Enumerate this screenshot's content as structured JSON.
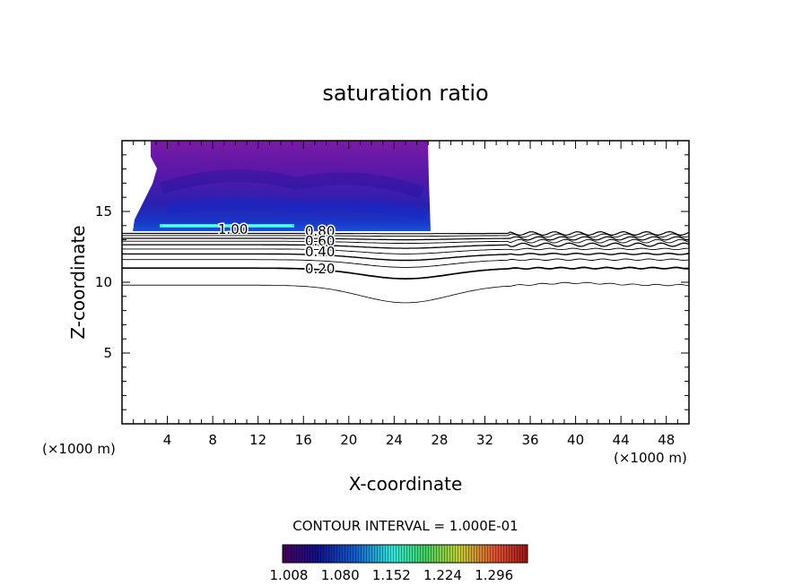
{
  "chart_data": {
    "type": "contour",
    "title": "saturation ratio",
    "xlabel": "X-coordinate",
    "ylabel": "Z-coordinate",
    "x_unit_left": "(×1000 m)",
    "x_unit_right": "(×1000 m)",
    "xlim": [
      0,
      50
    ],
    "ylim": [
      0,
      20
    ],
    "xticks": [
      "4",
      "8",
      "12",
      "16",
      "20",
      "24",
      "28",
      "32",
      "36",
      "40",
      "44",
      "48"
    ],
    "yticks": [
      "5",
      "10",
      "15"
    ],
    "contour_interval_text": "CONTOUR INTERVAL = 1.000E-01",
    "colorbar": {
      "labels": [
        "1.008",
        "1.080",
        "1.152",
        "1.224",
        "1.296"
      ],
      "colors": [
        "#4a0060",
        "#10108a",
        "#1060d0",
        "#30e8d8",
        "#40d060",
        "#c0d030",
        "#e05030",
        "#a01818"
      ]
    },
    "contour_labels": [
      "1.00",
      "0.80",
      "0.60",
      "0.40",
      "0.20"
    ],
    "contour_levels": [
      0.1,
      0.2,
      0.3,
      0.4,
      0.5,
      0.6,
      0.7,
      0.8,
      0.9,
      1.0
    ],
    "supersaturated_region": {
      "x_range": [
        1,
        27
      ],
      "z_range": [
        13.8,
        20
      ],
      "max_value": 1.08
    }
  }
}
